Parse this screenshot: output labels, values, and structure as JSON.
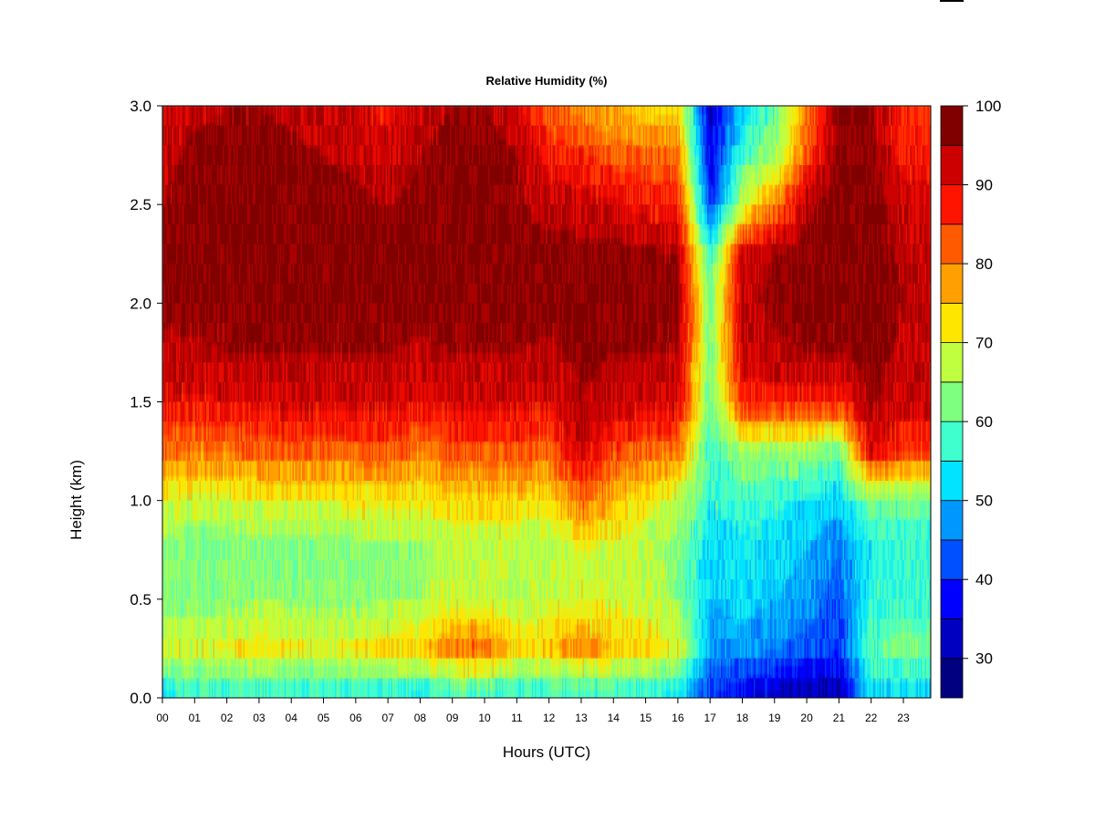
{
  "chart_data": {
    "type": "heatmap",
    "title": "Relative Humidity (%)",
    "xlabel": "Hours (UTC)",
    "ylabel": "Height (km)",
    "xlim": [
      0,
      23.85
    ],
    "ylim": [
      0.0,
      3.0
    ],
    "x_ticks": [
      0,
      1,
      2,
      3,
      4,
      5,
      6,
      7,
      8,
      9,
      10,
      11,
      12,
      13,
      14,
      15,
      16,
      17,
      18,
      19,
      20,
      21,
      22,
      23
    ],
    "x_tick_labels": [
      "00",
      "01",
      "02",
      "03",
      "04",
      "05",
      "06",
      "07",
      "08",
      "09",
      "10",
      "11",
      "12",
      "13",
      "14",
      "15",
      "16",
      "17",
      "18",
      "19",
      "20",
      "21",
      "22",
      "23"
    ],
    "y_ticks": [
      0.0,
      0.5,
      1.0,
      1.5,
      2.0,
      2.5,
      3.0
    ],
    "y_tick_labels": [
      "0.0",
      "0.5",
      "1.0",
      "1.5",
      "2.0",
      "2.5",
      "3.0"
    ],
    "colorbar": {
      "range": [
        25,
        100
      ],
      "levels": [
        25,
        30,
        35,
        40,
        45,
        50,
        55,
        60,
        65,
        70,
        75,
        80,
        85,
        90,
        95,
        100
      ],
      "tick_values": [
        30,
        40,
        50,
        60,
        70,
        80,
        90,
        100
      ],
      "tick_labels": [
        "30",
        "40",
        "50",
        "60",
        "70",
        "80",
        "90",
        "100"
      ],
      "colors": [
        "#000080",
        "#0000C0",
        "#0000FF",
        "#0050FF",
        "#0098FF",
        "#00E4FF",
        "#40FFCF",
        "#7FFF7F",
        "#BFFF3F",
        "#FFE600",
        "#FFA000",
        "#FF5A00",
        "#FF1400",
        "#CC0000",
        "#800000"
      ]
    },
    "hours": [
      0,
      1,
      2,
      3,
      4,
      5,
      6,
      7,
      8,
      9,
      10,
      11,
      12,
      13,
      14,
      15,
      16,
      17,
      18,
      19,
      20,
      21,
      22,
      23
    ],
    "heights": [
      0.0,
      0.25,
      0.5,
      0.75,
      1.0,
      1.25,
      1.5,
      1.75,
      2.0,
      2.25,
      2.5,
      2.75,
      3.0
    ],
    "values": [
      [
        52,
        70,
        63,
        62,
        70,
        82,
        90,
        94,
        96,
        98,
        95,
        93,
        90
      ],
      [
        55,
        70,
        63,
        62,
        68,
        80,
        89,
        94,
        97,
        98,
        97,
        97,
        93
      ],
      [
        54,
        71,
        63,
        62,
        69,
        80,
        90,
        95,
        97,
        98,
        98,
        97,
        95
      ],
      [
        56,
        72,
        65,
        63,
        70,
        82,
        91,
        95,
        97,
        98,
        98,
        97,
        95
      ],
      [
        55,
        71,
        64,
        63,
        70,
        83,
        92,
        95,
        97,
        98,
        97,
        96,
        94
      ],
      [
        54,
        70,
        64,
        63,
        70,
        82,
        92,
        95,
        97,
        98,
        97,
        95,
        93
      ],
      [
        54,
        71,
        64,
        63,
        71,
        83,
        92,
        95,
        97,
        98,
        96,
        94,
        92
      ],
      [
        54,
        72,
        65,
        64,
        72,
        83,
        92,
        95,
        97,
        98,
        95,
        92,
        88
      ],
      [
        53,
        75,
        65,
        64,
        71,
        80,
        90,
        94,
        97,
        98,
        96,
        95,
        93
      ],
      [
        55,
        80,
        68,
        67,
        73,
        84,
        92,
        95,
        97,
        98,
        97,
        97,
        95
      ],
      [
        54,
        82,
        68,
        67,
        73,
        83,
        91,
        95,
        97,
        98,
        97,
        97,
        95
      ],
      [
        54,
        74,
        66,
        66,
        73,
        83,
        92,
        95,
        97,
        98,
        96,
        95,
        92
      ],
      [
        55,
        75,
        67,
        66,
        72,
        82,
        91,
        94,
        97,
        97,
        93,
        88,
        82
      ],
      [
        54,
        80,
        70,
        70,
        82,
        92,
        95,
        96,
        97,
        97,
        92,
        86,
        78
      ],
      [
        55,
        75,
        69,
        69,
        75,
        85,
        93,
        95,
        97,
        97,
        91,
        83,
        75
      ],
      [
        55,
        73,
        68,
        67,
        72,
        82,
        92,
        95,
        96,
        96,
        88,
        82,
        72
      ],
      [
        52,
        70,
        64,
        63,
        68,
        80,
        92,
        95,
        96,
        95,
        88,
        82,
        74
      ],
      [
        40,
        48,
        50,
        52,
        55,
        58,
        60,
        62,
        62,
        57,
        40,
        35,
        32
      ],
      [
        35,
        48,
        52,
        54,
        57,
        65,
        87,
        92,
        94,
        92,
        68,
        58,
        52
      ],
      [
        32,
        45,
        50,
        52,
        56,
        65,
        88,
        94,
        96,
        95,
        80,
        65,
        60
      ],
      [
        30,
        43,
        48,
        50,
        54,
        64,
        88,
        95,
        97,
        97,
        94,
        83,
        80
      ],
      [
        30,
        40,
        42,
        45,
        52,
        62,
        87,
        95,
        97,
        98,
        98,
        97,
        97
      ],
      [
        52,
        60,
        56,
        55,
        62,
        90,
        96,
        97,
        98,
        98,
        98,
        97,
        96
      ],
      [
        50,
        62,
        57,
        56,
        62,
        85,
        92,
        94,
        95,
        94,
        92,
        88,
        85
      ]
    ]
  }
}
